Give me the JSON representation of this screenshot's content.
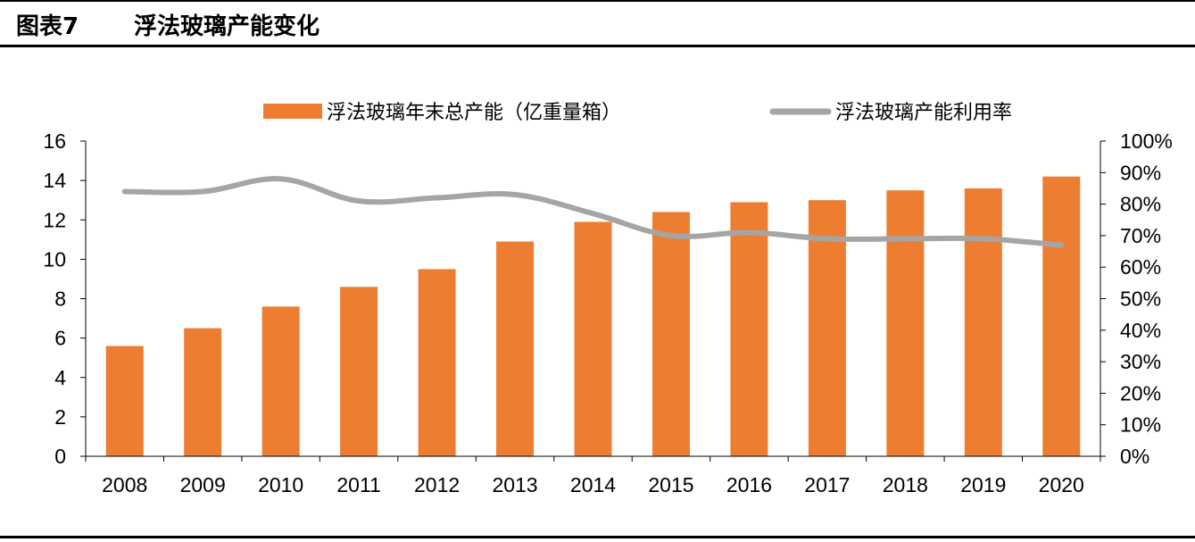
{
  "header": {
    "figure_label": "图表7",
    "figure_title": "浮法玻璃产能变化"
  },
  "colors": {
    "bar": "#ED7D31",
    "line": "#A5A5A5",
    "axis": "#000000"
  },
  "chart_data": {
    "type": "bar",
    "categories": [
      "2008",
      "2009",
      "2010",
      "2011",
      "2012",
      "2013",
      "2014",
      "2015",
      "2016",
      "2017",
      "2018",
      "2019",
      "2020"
    ],
    "series": [
      {
        "name": "浮法玻璃年末总产能（亿重量箱）",
        "type": "bar",
        "axis": "left",
        "values": [
          5.6,
          6.5,
          7.6,
          8.6,
          9.5,
          10.9,
          11.9,
          12.4,
          12.9,
          13.0,
          13.5,
          13.6,
          14.2
        ]
      },
      {
        "name": "浮法玻璃产能利用率",
        "type": "line",
        "axis": "right",
        "values": [
          84,
          84,
          88,
          81,
          82,
          83,
          77,
          70,
          71,
          69,
          69,
          69,
          67
        ]
      }
    ],
    "y_left": {
      "min": 0,
      "max": 16,
      "ticks": [
        "0",
        "2",
        "4",
        "6",
        "8",
        "10",
        "12",
        "14",
        "16"
      ]
    },
    "y_right": {
      "min": 0,
      "max": 100,
      "ticks": [
        "0%",
        "10%",
        "20%",
        "30%",
        "40%",
        "50%",
        "60%",
        "70%",
        "80%",
        "90%",
        "100%"
      ]
    },
    "legend_position": "top",
    "grid": false
  }
}
